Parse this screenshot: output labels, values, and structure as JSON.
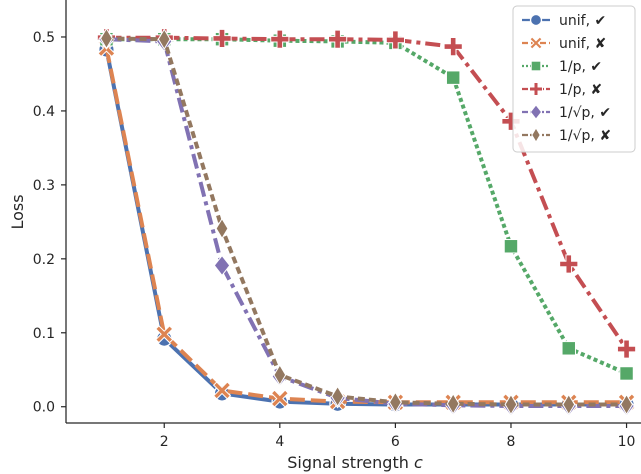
{
  "chart_data": {
    "type": "line",
    "xlabel": "Signal strength c",
    "ylabel": "Loss",
    "xlim": [
      0.3,
      10.25
    ],
    "ylim": [
      -0.022,
      0.55
    ],
    "xticks": [
      "2",
      "4",
      "6",
      "8",
      "10"
    ],
    "yticks": [
      "0.0",
      "0.1",
      "0.2",
      "0.3",
      "0.4",
      "0.5"
    ],
    "grid": false,
    "legend_position": "top-right",
    "series": [
      {
        "name": "unif, ✔",
        "color": "#4c72b0",
        "dash": "solid",
        "marker": "circle",
        "x": [
          1,
          2,
          3,
          4,
          5,
          6,
          7,
          8,
          9,
          10
        ],
        "values": [
          0.483,
          0.092,
          0.018,
          0.007,
          0.004,
          0.003,
          0.003,
          0.003,
          0.003,
          0.003
        ]
      },
      {
        "name": "unif, ✘",
        "color": "#dd8452",
        "dash": "dashed",
        "marker": "x",
        "x": [
          1,
          2,
          3,
          4,
          5,
          6,
          7,
          8,
          9,
          10
        ],
        "values": [
          0.485,
          0.098,
          0.022,
          0.011,
          0.007,
          0.006,
          0.006,
          0.006,
          0.006,
          0.006
        ]
      },
      {
        "name": "1/p, ✔",
        "color": "#55a868",
        "dash": "dotted",
        "marker": "square",
        "x": [
          1,
          2,
          3,
          4,
          5,
          6,
          7,
          8,
          9,
          10
        ],
        "values": [
          0.497,
          0.497,
          0.497,
          0.495,
          0.494,
          0.492,
          0.445,
          0.217,
          0.079,
          0.045
        ]
      },
      {
        "name": "1/p, ✘",
        "color": "#c44e52",
        "dash": "dashdot",
        "marker": "plus",
        "x": [
          1,
          2,
          3,
          4,
          5,
          6,
          7,
          8,
          9,
          10
        ],
        "values": [
          0.499,
          0.499,
          0.498,
          0.497,
          0.497,
          0.496,
          0.487,
          0.386,
          0.193,
          0.078
        ]
      },
      {
        "name": "1/√p, ✔",
        "color": "#8172b3",
        "dash": "dashdot",
        "marker": "diamond",
        "x": [
          1,
          2,
          3,
          4,
          5,
          6,
          7,
          8,
          9,
          10
        ],
        "values": [
          0.497,
          0.494,
          0.191,
          0.041,
          0.012,
          0.004,
          0.002,
          0.001,
          0.001,
          0.001
        ]
      },
      {
        "name": "1/√p, ✘",
        "color": "#937860",
        "dash": "dotted2",
        "marker": "thin-diamond",
        "x": [
          1,
          2,
          3,
          4,
          5,
          6,
          7,
          8,
          9,
          10
        ],
        "values": [
          0.498,
          0.497,
          0.241,
          0.043,
          0.014,
          0.006,
          0.004,
          0.003,
          0.003,
          0.003
        ]
      }
    ]
  }
}
